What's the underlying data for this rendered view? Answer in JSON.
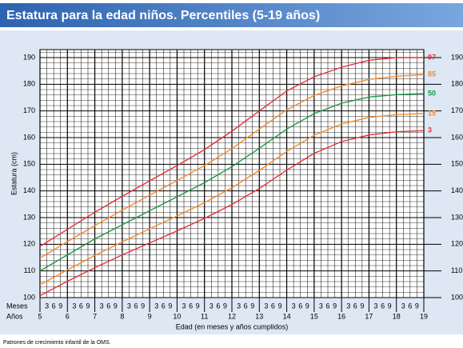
{
  "chart_data": {
    "type": "line",
    "title": "Estatura para la edad niños. Percentiles (5-19 años)",
    "y_label": "Estatura (cm)",
    "x_label": "Edad (en meses y años cumplidos)",
    "months_label": "Meses",
    "years_label": "Años",
    "month_labels": [
      "3",
      "6",
      "9"
    ],
    "footer": "Patrones de crecimiento infantil de la OMS.",
    "x": [
      5,
      6,
      7,
      8,
      9,
      10,
      11,
      12,
      13,
      14,
      15,
      16,
      17,
      18,
      19
    ],
    "series": [
      {
        "name": "97",
        "color": "#e8303a",
        "values": [
          119.2,
          125.6,
          132,
          138,
          143.8,
          149.5,
          155.5,
          162.4,
          170,
          177.5,
          182.8,
          186.4,
          189,
          190,
          190
        ]
      },
      {
        "name": "85",
        "color": "#f58a2a",
        "values": [
          114.8,
          121,
          127,
          132.8,
          138.4,
          143.9,
          149.5,
          155.9,
          163.2,
          170.4,
          175.8,
          179.4,
          181.8,
          183,
          183.6
        ]
      },
      {
        "name": "50",
        "color": "#1a9a48",
        "values": [
          110,
          116,
          122,
          127.3,
          132.6,
          137.8,
          143.1,
          149.1,
          156,
          163.2,
          169,
          172.9,
          175.2,
          176.1,
          176.5
        ]
      },
      {
        "name": "15",
        "color": "#f58a2a",
        "values": [
          104.8,
          110.4,
          115.8,
          120.9,
          125.8,
          130.6,
          135.6,
          141.2,
          147.7,
          154.8,
          160.9,
          165.1,
          167.6,
          168.6,
          169
        ]
      },
      {
        "name": "3",
        "color": "#e8303a",
        "values": [
          100.7,
          106.1,
          111.2,
          116,
          120.5,
          125,
          129.7,
          134.9,
          140.9,
          147.8,
          154.1,
          158.5,
          161,
          162.2,
          162.6
        ]
      }
    ],
    "xlim": [
      5,
      19
    ],
    "xticks": [
      5,
      6,
      7,
      8,
      9,
      10,
      11,
      12,
      13,
      14,
      15,
      16,
      17,
      18,
      19
    ],
    "ylim": [
      100,
      193
    ],
    "yticks": [
      100,
      110,
      120,
      130,
      140,
      150,
      160,
      170,
      180,
      190
    ],
    "grid": true
  }
}
